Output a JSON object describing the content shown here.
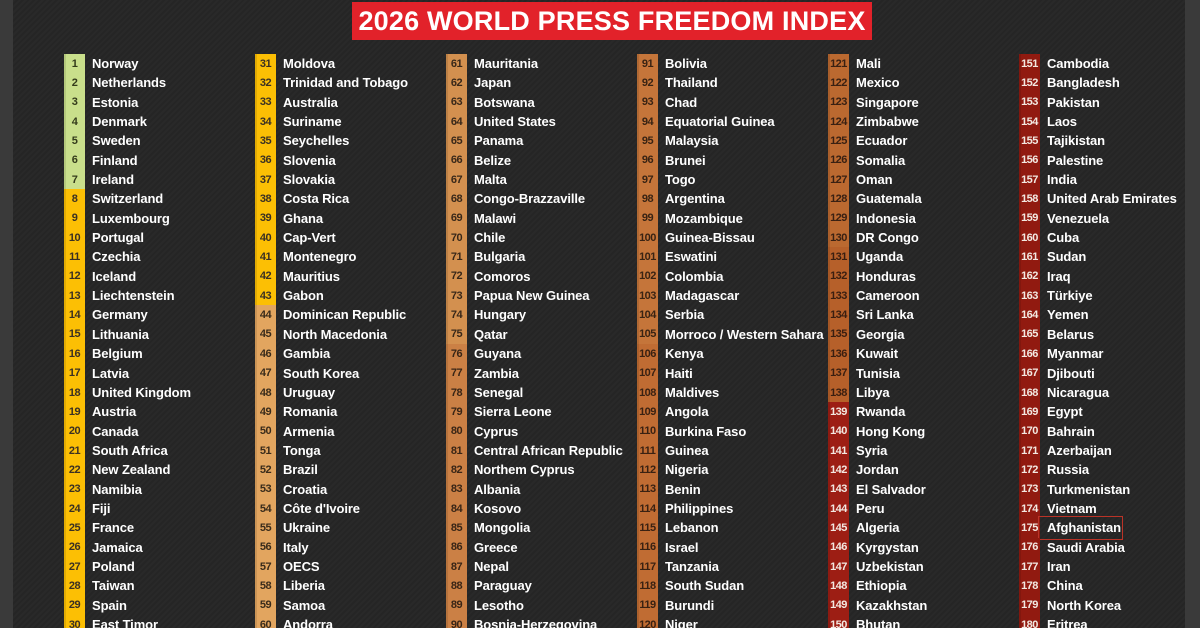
{
  "banner": {
    "label": "2026 WORLD PRESS FREEDOM INDEX",
    "bg": "#e2222a",
    "fg": "#ffffff"
  },
  "colors": {
    "canvas": "#262626",
    "side_strip": "#3a3a3a",
    "name_text": "#ffffff",
    "highlight_box": "#bb3327"
  },
  "highlight": {
    "rank": 175,
    "country": "Afghanistan"
  },
  "chart_data": {
    "type": "table",
    "title": "2026 WORLD PRESS FREEDOM INDEX",
    "columns": [
      "rank",
      "country"
    ],
    "layout": "6 columns of 30 ranks, color-coded from green (free) to dark red (least free)",
    "color_bands": [
      {
        "start": 1,
        "end": 7,
        "bg": "#c9df8b",
        "fg": "#333a1a"
      },
      {
        "start": 8,
        "end": 43,
        "bg": "#fcbf04",
        "fg": "#3a3023"
      },
      {
        "start": 44,
        "end": 60,
        "bg": "#e2a55f",
        "fg": "#3a2c1b"
      },
      {
        "start": 61,
        "end": 75,
        "bg": "#d3904f",
        "fg": "#392819"
      },
      {
        "start": 76,
        "end": 90,
        "bg": "#cb8045",
        "fg": "#392516"
      },
      {
        "start": 91,
        "end": 105,
        "bg": "#c5753a",
        "fg": "#392313"
      },
      {
        "start": 106,
        "end": 120,
        "bg": "#c06c33",
        "fg": "#392112"
      },
      {
        "start": 121,
        "end": 130,
        "bg": "#bb6930",
        "fg": "#392012"
      },
      {
        "start": 131,
        "end": 138,
        "bg": "#b6602a",
        "fg": "#391e10"
      },
      {
        "start": 139,
        "end": 150,
        "bg": "#9d1e14",
        "fg": "#f3e9e2"
      },
      {
        "start": 151,
        "end": 180,
        "bg": "#911a10",
        "fg": "#f3e9e2"
      }
    ],
    "countries": [
      "Norway",
      "Netherlands",
      "Estonia",
      "Denmark",
      "Sweden",
      "Finland",
      "Ireland",
      "Switzerland",
      "Luxembourg",
      "Portugal",
      "Czechia",
      "Iceland",
      "Liechtenstein",
      "Germany",
      "Lithuania",
      "Belgium",
      "Latvia",
      "United Kingdom",
      "Austria",
      "Canada",
      "South Africa",
      "New Zealand",
      "Namibia",
      "Fiji",
      "France",
      "Jamaica",
      "Poland",
      "Taiwan",
      "Spain",
      "East Timor",
      "Moldova",
      "Trinidad and Tobago",
      "Australia",
      "Suriname",
      "Seychelles",
      "Slovenia",
      "Slovakia",
      "Costa Rica",
      "Ghana",
      "Cap-Vert",
      "Montenegro",
      "Mauritius",
      "Gabon",
      "Dominican Republic",
      "North Macedonia",
      "Gambia",
      "South Korea",
      "Uruguay",
      "Romania",
      "Armenia",
      "Tonga",
      "Brazil",
      "Croatia",
      "Côte d'Ivoire",
      "Ukraine",
      "Italy",
      "OECS",
      "Liberia",
      "Samoa",
      "Andorra",
      "Mauritania",
      "Japan",
      "Botswana",
      "United States",
      "Panama",
      "Belize",
      "Malta",
      "Congo-Brazzaville",
      "Malawi",
      "Chile",
      "Bulgaria",
      "Comoros",
      "Papua New Guinea",
      "Hungary",
      "Qatar",
      "Guyana",
      "Zambia",
      "Senegal",
      "Sierra Leone",
      "Cyprus",
      "Central African Republic",
      "Northem Cyprus",
      "Albania",
      "Kosovo",
      "Mongolia",
      "Greece",
      "Nepal",
      "Paraguay",
      "Lesotho",
      "Bosnia-Herzegovina",
      "Bolivia",
      "Thailand",
      "Chad",
      "Equatorial Guinea",
      "Malaysia",
      "Brunei",
      "Togo",
      "Argentina",
      "Mozambique",
      "Guinea-Bissau",
      "Eswatini",
      "Colombia",
      "Madagascar",
      "Serbia",
      "Morroco / Western Sahara",
      "Kenya",
      "Haiti",
      "Maldives",
      "Angola",
      "Burkina Faso",
      "Guinea",
      "Nigeria",
      "Benin",
      "Philippines",
      "Lebanon",
      "Israel",
      "Tanzania",
      "South Sudan",
      "Burundi",
      "Niger",
      "Mali",
      "Mexico",
      "Singapore",
      "Zimbabwe",
      "Ecuador",
      "Somalia",
      "Oman",
      "Guatemala",
      "Indonesia",
      "DR Congo",
      "Uganda",
      "Honduras",
      "Cameroon",
      "Sri Lanka",
      "Georgia",
      "Kuwait",
      "Tunisia",
      "Libya",
      "Rwanda",
      "Hong Kong",
      "Syria",
      "Jordan",
      "El Salvador",
      "Peru",
      "Algeria",
      "Kyrgystan",
      "Uzbekistan",
      "Ethiopia",
      "Kazakhstan",
      "Bhutan",
      "Cambodia",
      "Bangladesh",
      "Pakistan",
      "Laos",
      "Tajikistan",
      "Palestine",
      "India",
      "United Arab Emirates",
      "Venezuela",
      "Cuba",
      "Sudan",
      "Iraq",
      "Türkiye",
      "Yemen",
      "Belarus",
      "Myanmar",
      "Djibouti",
      "Nicaragua",
      "Egypt",
      "Bahrain",
      "Azerbaijan",
      "Russia",
      "Turkmenistan",
      "Vietnam",
      "Afghanistan",
      "Saudi Arabia",
      "Iran",
      "China",
      "North Korea",
      "Eritrea"
    ]
  }
}
